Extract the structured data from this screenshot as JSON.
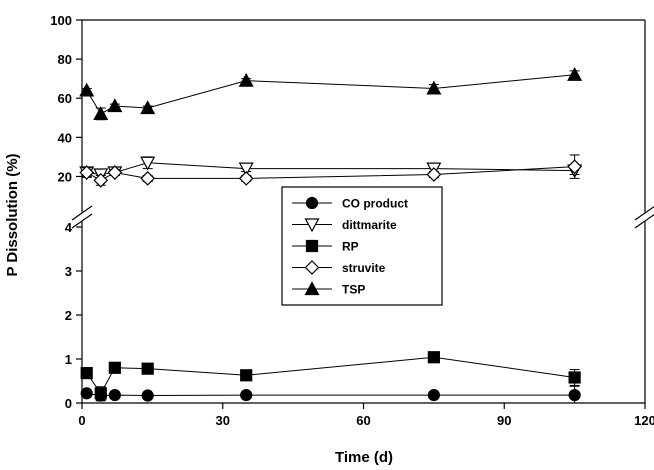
{
  "chart_data": {
    "type": "line",
    "xlabel": "Time (d)",
    "ylabel": "P Dissolution (%)",
    "xlim": [
      0,
      120
    ],
    "x_ticks": [
      0,
      30,
      60,
      90,
      120
    ],
    "y_axis_break": true,
    "y_lower_range": [
      0,
      4
    ],
    "y_upper_range": [
      10,
      100
    ],
    "y_ticks_lower": [
      0,
      1,
      2,
      3,
      4
    ],
    "y_ticks_upper": [
      20,
      40,
      60,
      80,
      100
    ],
    "x_tick_labels": [
      "0",
      "30",
      "60",
      "90",
      "120"
    ],
    "y_tick_labels_lower": [
      "0",
      "1",
      "2",
      "3",
      "4"
    ],
    "y_tick_labels_upper": [
      "20",
      "40",
      "60",
      "80",
      "100"
    ],
    "grid": false,
    "legend_position": "center",
    "series": [
      {
        "name": "CO product",
        "marker": "circle-filled",
        "x": [
          1,
          4,
          7,
          14,
          35,
          75,
          105
        ],
        "y": [
          0.22,
          0.17,
          0.18,
          0.17,
          0.18,
          0.18,
          0.18
        ],
        "err": [
          0.03,
          0.12,
          0.05,
          0.03,
          0.03,
          0.02,
          0.2
        ]
      },
      {
        "name": "dittmarite",
        "marker": "triangle-down-open",
        "x": [
          1,
          4,
          7,
          14,
          35,
          75,
          105
        ],
        "y": [
          22,
          21,
          22,
          27,
          24,
          24,
          23
        ],
        "err": [
          2,
          2,
          1.5,
          3,
          1.5,
          2,
          2
        ]
      },
      {
        "name": "RP",
        "marker": "square-filled",
        "x": [
          1,
          4,
          7,
          14,
          35,
          75,
          105
        ],
        "y": [
          0.68,
          0.22,
          0.8,
          0.78,
          0.63,
          1.04,
          0.58
        ],
        "err": [
          0.04,
          0.15,
          0.04,
          0.04,
          0.05,
          0.05,
          0.18
        ]
      },
      {
        "name": "struvite",
        "marker": "diamond-open",
        "x": [
          1,
          4,
          7,
          14,
          35,
          75,
          105
        ],
        "y": [
          22,
          18,
          22,
          19,
          19,
          21,
          25
        ],
        "err": [
          2.5,
          2.5,
          1.5,
          1.5,
          1.5,
          1.5,
          6
        ]
      },
      {
        "name": "TSP",
        "marker": "triangle-up-filled",
        "x": [
          1,
          4,
          7,
          14,
          35,
          75,
          105
        ],
        "y": [
          64,
          52,
          56,
          55,
          69,
          65,
          72
        ],
        "err": [
          1,
          3,
          1,
          1,
          1,
          2,
          2
        ]
      }
    ]
  }
}
